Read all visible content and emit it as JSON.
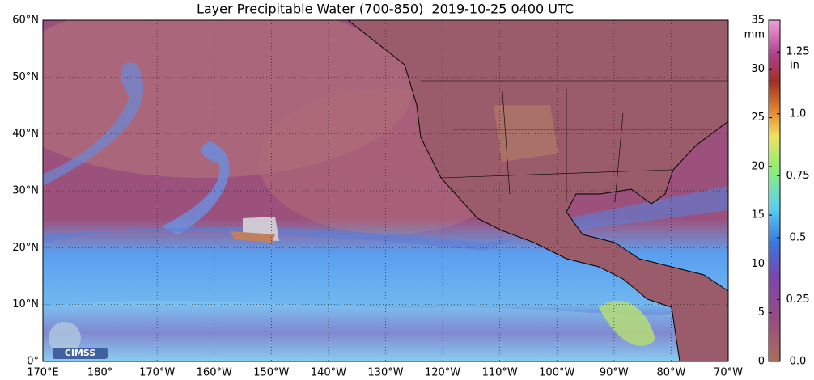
{
  "title": "Layer Precipitable Water (700-850)  2019-10-25 0400 UTC",
  "lat_labels": [
    "60°N",
    "50°N",
    "40°N",
    "30°N",
    "20°N",
    "10°N",
    "0°"
  ],
  "lon_labels": [
    "170°E",
    "180°",
    "170°W",
    "160°W",
    "150°W",
    "140°W",
    "130°W",
    "120°W",
    "110°W",
    "100°W",
    "90°W",
    "80°W",
    "70°W"
  ],
  "colorbar": {
    "mm_unit": "mm",
    "mm_lim": [
      0,
      35
    ],
    "mm_ticks": [
      0,
      5,
      10,
      15,
      20,
      25,
      30,
      35
    ],
    "in_unit": "in",
    "in_lim": [
      0,
      1.378
    ],
    "in_ticks": [
      {
        "value": 0,
        "label": "0.0"
      },
      0.25,
      0.5,
      0.75,
      {
        "value": 1,
        "label": "1.0"
      },
      1.25
    ]
  },
  "logo": "CIMSS"
}
